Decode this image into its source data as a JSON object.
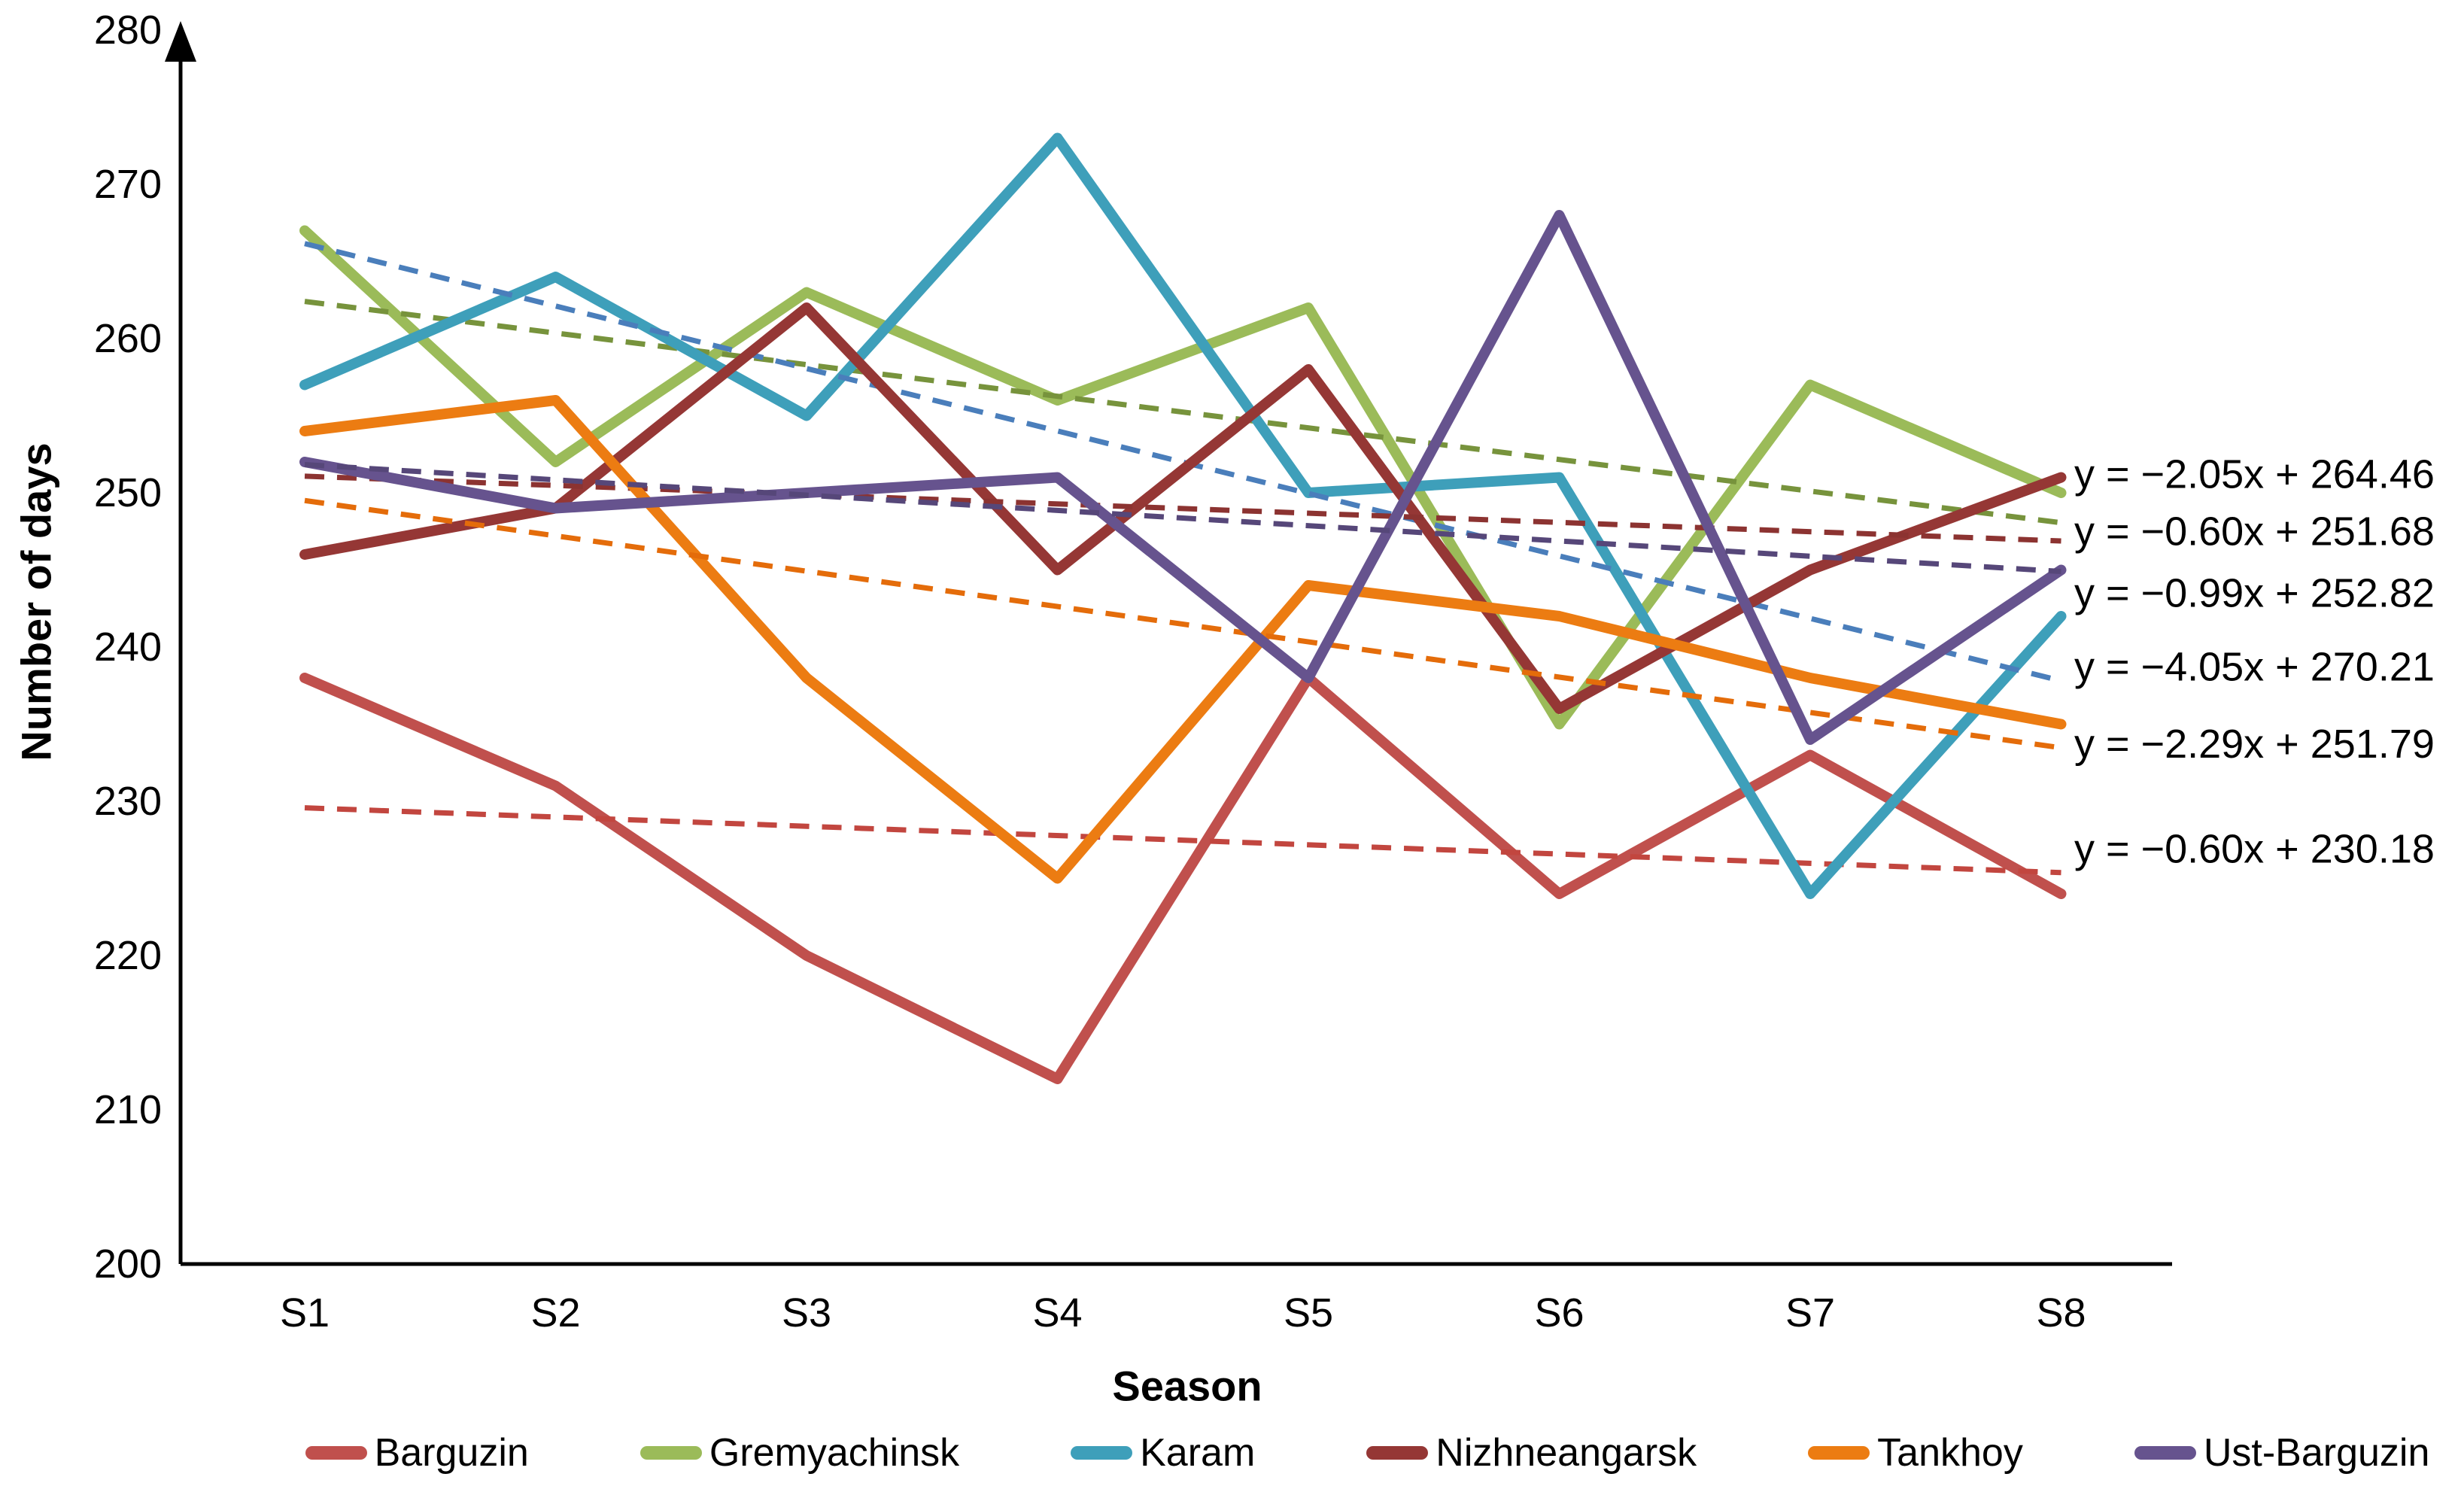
{
  "chart_data": {
    "type": "line",
    "xlabel": "Season",
    "ylabel": "Number of days",
    "categories": [
      "S1",
      "S2",
      "S3",
      "S4",
      "S5",
      "S6",
      "S7",
      "S8"
    ],
    "ylim": [
      200,
      280
    ],
    "ytick_step": 10,
    "grid": "off",
    "legend_position": "bottom",
    "series": [
      {
        "name": "Barguzin",
        "color": "#C0504D",
        "values": [
          238,
          231,
          220,
          212,
          238,
          224,
          233,
          224
        ],
        "trend": {
          "label": "y = −0.60x + 230.18",
          "slope": -0.6,
          "intercept": 230.18,
          "color": "#C2463F",
          "label_anchor_value": 226.9
        }
      },
      {
        "name": "Gremyachinsk",
        "color": "#9BBB59",
        "values": [
          267,
          252,
          263,
          256,
          262,
          235,
          257,
          250
        ],
        "trend": {
          "label": "y = −2.05x + 264.46",
          "slope": -2.05,
          "intercept": 264.46,
          "color": "#77933C",
          "label_anchor_value": 251.2
        }
      },
      {
        "name": "Karam",
        "color": "#3E9FBA",
        "values": [
          257,
          264,
          255,
          273,
          250,
          251,
          224,
          242
        ],
        "trend": {
          "label": "y = −4.05x + 270.21",
          "slope": -4.05,
          "intercept": 270.21,
          "color": "#4A7EBB",
          "label_anchor_value": 238.7
        }
      },
      {
        "name": "Nizhneangarsk",
        "color": "#953735",
        "values": [
          246,
          249,
          262,
          245,
          258,
          236,
          245,
          251
        ],
        "trend": {
          "label": "y = −0.60x + 251.68",
          "slope": -0.6,
          "intercept": 251.68,
          "color": "#8C3331",
          "label_anchor_value": 247.5
        }
      },
      {
        "name": "Tankhoy",
        "color": "#EC7C12",
        "values": [
          254,
          256,
          238,
          225,
          244,
          242,
          238,
          235
        ],
        "trend": {
          "label": "y = −2.29x + 251.79",
          "slope": -2.29,
          "intercept": 251.79,
          "color": "#E46C0A",
          "label_anchor_value": 233.7
        }
      },
      {
        "name": "Ust-Barguzin",
        "color": "#66538E",
        "values": [
          252,
          249,
          250,
          251,
          238,
          268,
          234,
          245
        ],
        "trend": {
          "label": "y = −0.99x + 252.82",
          "slope": -0.99,
          "intercept": 252.82,
          "color": "#564779",
          "label_anchor_value": 243.5
        }
      }
    ]
  }
}
